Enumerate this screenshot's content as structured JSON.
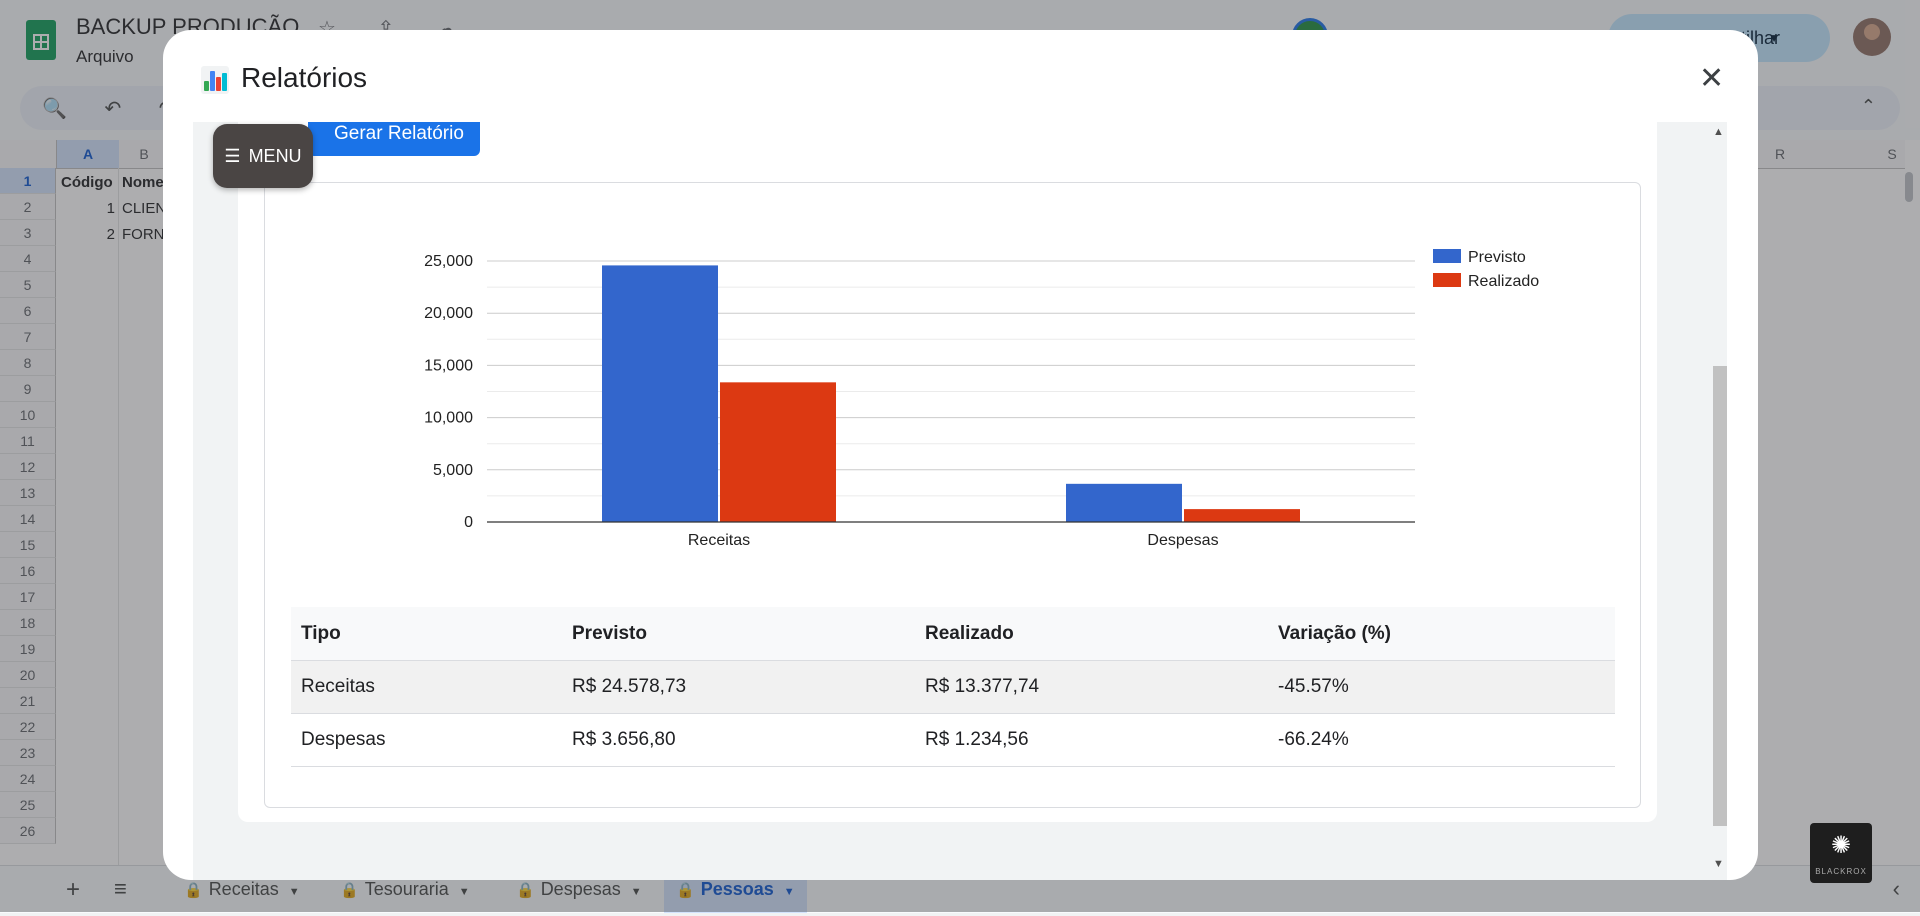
{
  "spreadsheet": {
    "title": "BACKUP PRODUÇÃO",
    "menu_first": "Arquivo",
    "share_label": "Compartilhar",
    "columns": [
      "A",
      "B",
      "R",
      "S"
    ],
    "rows": [
      "1",
      "2",
      "3",
      "4",
      "5",
      "6",
      "7",
      "8",
      "9",
      "10",
      "11",
      "12",
      "13",
      "14",
      "15",
      "16",
      "17",
      "18",
      "19",
      "20",
      "21",
      "22",
      "23",
      "24",
      "25",
      "26"
    ],
    "cells": {
      "a1": "Código",
      "b1": "Nome",
      "a2": "1",
      "b2": "CLIEN",
      "a3": "2",
      "b3": "FORN"
    },
    "tabs": [
      "Receitas",
      "Tesouraria",
      "Despesas",
      "Pessoas"
    ],
    "active_tab": "Pessoas",
    "watermark": "BLACKROX"
  },
  "modal": {
    "title": "Relatórios",
    "generate_button": "Gerar Relatório",
    "menu_label": "MENU"
  },
  "chart_data": {
    "type": "bar",
    "categories": [
      "Receitas",
      "Despesas"
    ],
    "series": [
      {
        "name": "Previsto",
        "values": [
          24578.73,
          3656.8
        ],
        "color": "#3366cc"
      },
      {
        "name": "Realizado",
        "values": [
          13377.74,
          1234.56
        ],
        "color": "#dc3912"
      }
    ],
    "ylim": [
      0,
      25000
    ],
    "yticks": [
      "0",
      "5,000",
      "10,000",
      "15,000",
      "20,000",
      "25,000"
    ],
    "legend_position": "right",
    "grid": true
  },
  "report_table": {
    "headers": [
      "Tipo",
      "Previsto",
      "Realizado",
      "Variação (%)"
    ],
    "rows": [
      [
        "Receitas",
        "R$ 24.578,73",
        "R$ 13.377,74",
        "-45.57%"
      ],
      [
        "Despesas",
        "R$ 3.656,80",
        "R$ 1.234,56",
        "-66.24%"
      ]
    ]
  },
  "colors": {
    "primary_button": "#1a73e8",
    "menu_fab": "#4a4544",
    "active_tab": "#d3e3fd"
  }
}
